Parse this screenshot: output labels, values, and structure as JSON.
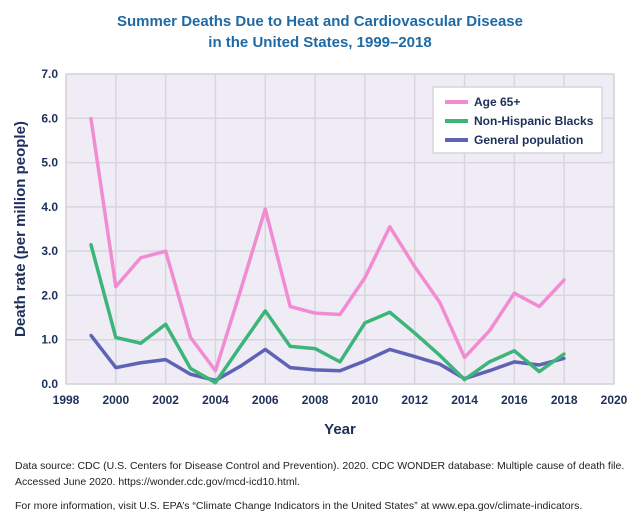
{
  "chart_data": {
    "type": "line",
    "title": "Summer Deaths Due to Heat and Cardiovascular Disease",
    "subtitle": "in the United States, 1999–2018",
    "xlabel": "Year",
    "ylabel": "Death rate (per million people)",
    "xlim": [
      1998,
      2020
    ],
    "ylim": [
      0,
      7
    ],
    "xticks": [
      "1998",
      "2000",
      "2002",
      "2004",
      "2006",
      "2008",
      "2010",
      "2012",
      "2014",
      "2016",
      "2018",
      "2020"
    ],
    "yticks": [
      "0.0",
      "1.0",
      "2.0",
      "3.0",
      "4.0",
      "5.0",
      "6.0",
      "7.0"
    ],
    "grid": true,
    "legend_position": "top-right",
    "x": [
      1999,
      2000,
      2001,
      2002,
      2003,
      2004,
      2005,
      2006,
      2007,
      2008,
      2009,
      2010,
      2011,
      2012,
      2013,
      2014,
      2015,
      2016,
      2017,
      2018
    ],
    "series": [
      {
        "name": "Age 65+",
        "color": "#f28cd2",
        "values": [
          6.0,
          2.2,
          2.85,
          3.0,
          1.05,
          0.3,
          2.1,
          3.95,
          1.75,
          1.6,
          1.57,
          2.4,
          3.55,
          2.65,
          1.85,
          0.6,
          1.2,
          2.05,
          1.75,
          2.35
        ]
      },
      {
        "name": "Non-Hispanic Blacks",
        "color": "#3db57a",
        "values": [
          3.15,
          1.05,
          0.92,
          1.35,
          0.35,
          0.03,
          0.85,
          1.65,
          0.85,
          0.8,
          0.5,
          1.38,
          1.62,
          1.15,
          0.65,
          0.1,
          0.5,
          0.75,
          0.28,
          0.68
        ]
      },
      {
        "name": "General population",
        "color": "#5f63b5",
        "values": [
          1.1,
          0.37,
          0.48,
          0.55,
          0.22,
          0.08,
          0.4,
          0.78,
          0.37,
          0.32,
          0.3,
          0.52,
          0.78,
          0.62,
          0.45,
          0.12,
          0.3,
          0.5,
          0.43,
          0.58
        ]
      }
    ]
  },
  "notes": {
    "source_line1": "Data source: CDC (U.S. Centers for Disease Control and Prevention). 2020. CDC WONDER database: Multiple cause of death file.",
    "source_line2": "Accessed June 2020. https://wonder.cdc.gov/mcd-icd10.html.",
    "more_info": "For more information, visit U.S. EPA’s “Climate Change Indicators in the United States” at www.epa.gov/climate-indicators."
  }
}
